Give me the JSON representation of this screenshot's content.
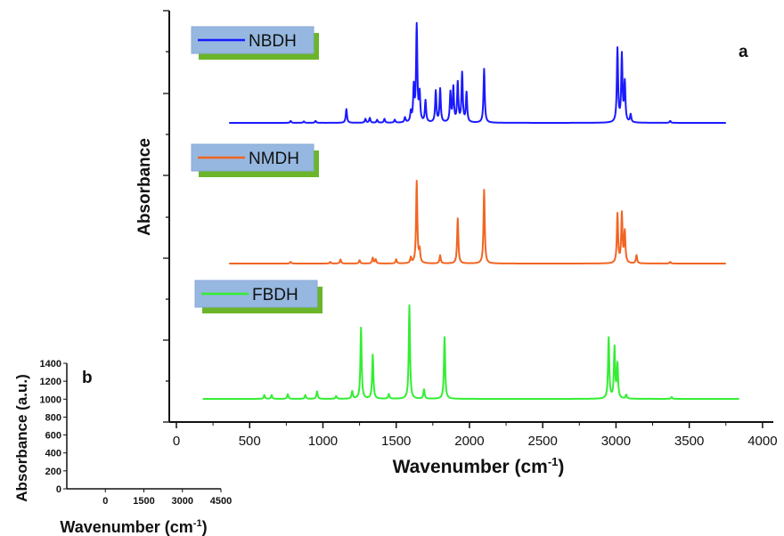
{
  "chart_data": [
    {
      "panel": "a",
      "type": "line",
      "xlabel": "Wavenumber (cm",
      "xlabel_sup": "-1",
      "xlabel_close": ")",
      "ylabel": "Absorbance",
      "xlim": [
        0,
        4100
      ],
      "x_ticks": [
        "0",
        "500",
        "1000",
        "1500",
        "2000",
        "2500",
        "3000",
        "3500",
        "4000"
      ],
      "x_tick_values": [
        0,
        500,
        1000,
        1500,
        2000,
        2500,
        3000,
        3500,
        4000
      ],
      "y_ticks_shown": false,
      "grid": false,
      "series": [
        {
          "name": "NBDH",
          "color": "#1a1aff",
          "x_range": [
            360,
            3750
          ],
          "peaks": [
            [
              780,
              0.02
            ],
            [
              870,
              0.015
            ],
            [
              950,
              0.02
            ],
            [
              1160,
              0.14
            ],
            [
              1290,
              0.04
            ],
            [
              1320,
              0.05
            ],
            [
              1370,
              0.03
            ],
            [
              1420,
              0.04
            ],
            [
              1490,
              0.03
            ],
            [
              1560,
              0.05
            ],
            [
              1600,
              0.1
            ],
            [
              1620,
              0.35
            ],
            [
              1640,
              1.0
            ],
            [
              1660,
              0.28
            ],
            [
              1700,
              0.22
            ],
            [
              1770,
              0.32
            ],
            [
              1800,
              0.34
            ],
            [
              1870,
              0.3
            ],
            [
              1890,
              0.35
            ],
            [
              1920,
              0.4
            ],
            [
              1950,
              0.5
            ],
            [
              1980,
              0.3
            ],
            [
              2100,
              0.55
            ],
            [
              3010,
              0.75
            ],
            [
              3040,
              0.68
            ],
            [
              3060,
              0.4
            ],
            [
              3100,
              0.08
            ],
            [
              3370,
              0.02
            ]
          ]
        },
        {
          "name": "NMDH",
          "color": "#f26522",
          "x_range": [
            360,
            3750
          ],
          "peaks": [
            [
              780,
              0.02
            ],
            [
              1050,
              0.02
            ],
            [
              1120,
              0.05
            ],
            [
              1250,
              0.04
            ],
            [
              1340,
              0.07
            ],
            [
              1360,
              0.05
            ],
            [
              1500,
              0.05
            ],
            [
              1600,
              0.07
            ],
            [
              1640,
              1.0
            ],
            [
              1660,
              0.15
            ],
            [
              1800,
              0.1
            ],
            [
              1920,
              0.55
            ],
            [
              2100,
              0.9
            ],
            [
              3010,
              0.6
            ],
            [
              3040,
              0.6
            ],
            [
              3060,
              0.38
            ],
            [
              3140,
              0.1
            ],
            [
              3370,
              0.02
            ]
          ]
        },
        {
          "name": "FBDH",
          "color": "#33ee33",
          "x_range": [
            180,
            3840
          ],
          "peaks": [
            [
              600,
              0.04
            ],
            [
              650,
              0.04
            ],
            [
              760,
              0.05
            ],
            [
              880,
              0.04
            ],
            [
              960,
              0.08
            ],
            [
              1090,
              0.03
            ],
            [
              1200,
              0.08
            ],
            [
              1260,
              0.76
            ],
            [
              1340,
              0.47
            ],
            [
              1450,
              0.05
            ],
            [
              1590,
              1.0
            ],
            [
              1690,
              0.1
            ],
            [
              1830,
              0.66
            ],
            [
              2950,
              0.65
            ],
            [
              2990,
              0.54
            ],
            [
              3010,
              0.36
            ],
            [
              3070,
              0.04
            ],
            [
              3380,
              0.02
            ]
          ]
        }
      ]
    },
    {
      "panel": "b",
      "type": "line",
      "xlabel": "Wavenumber (cm",
      "xlabel_sup": "-1",
      "xlabel_close": ")",
      "ylabel": "Absorbance (a.u.)",
      "xlim": [
        -1500,
        4500
      ],
      "ylim": [
        0,
        1400
      ],
      "x_ticks": [
        "0",
        "1500",
        "3000",
        "4500"
      ],
      "x_tick_values": [
        0,
        1500,
        3000,
        4500
      ],
      "y_ticks": [
        "0",
        "200",
        "400",
        "600",
        "800",
        "1000",
        "1200",
        "1400"
      ],
      "y_tick_values": [
        0,
        200,
        400,
        600,
        800,
        1000,
        1200,
        1400
      ],
      "series": []
    }
  ]
}
